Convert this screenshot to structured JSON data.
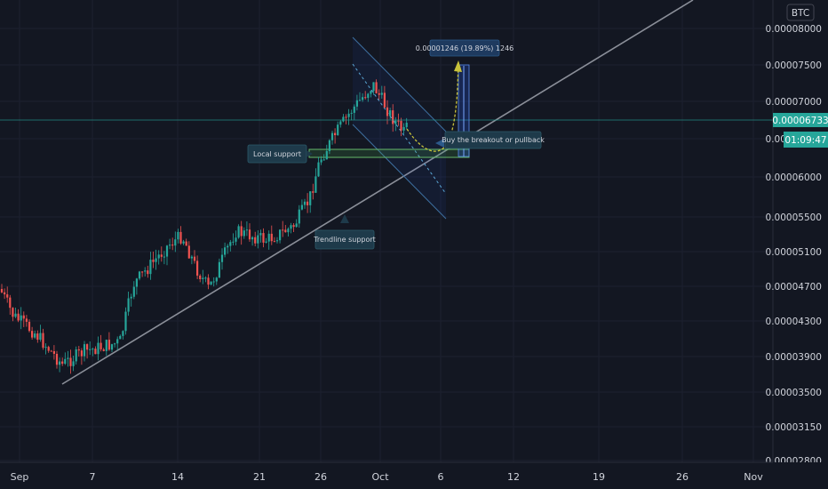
{
  "chart_data": {
    "type": "candlestick",
    "quote_currency": "BTC",
    "y_ticks": [
      "0.00008000",
      "0.00007500",
      "0.00007000",
      "0.00006500",
      "0.00006000",
      "0.00005500",
      "0.00005100",
      "0.00004700",
      "0.00004300",
      "0.00003900",
      "0.00003500",
      "0.00003150",
      "0.00002800"
    ],
    "x_ticks": [
      "Sep",
      "7",
      "14",
      "21",
      "26",
      "Oct",
      "6",
      "12",
      "19",
      "26",
      "Nov"
    ],
    "current_price": "0.00006733",
    "countdown": "01:09:47",
    "annotations": {
      "local_support": "Local support",
      "trendline_support": "Trendline support",
      "breakout_note": "Buy the breakout or pullback",
      "measure_label": "0.00001246 (19.89%) 1246"
    },
    "colors": {
      "up": "#26a69a",
      "down": "#ef5350",
      "background": "#131722",
      "accent": "#2962ff"
    }
  }
}
